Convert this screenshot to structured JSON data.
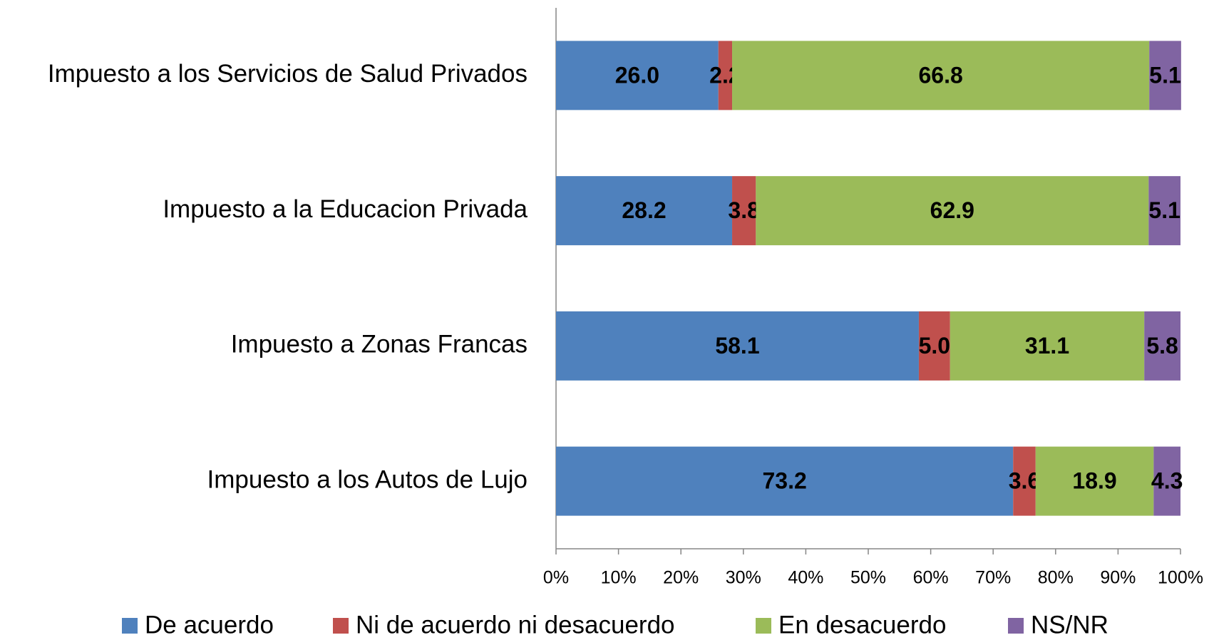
{
  "chart_data": {
    "type": "stacked_bar_horizontal",
    "categories": [
      "Impuesto a los Servicios de Salud Privados",
      "Impuesto a la Educacion Privada",
      "Impuesto a Zonas Francas",
      "Impuesto a los Autos de Lujo"
    ],
    "series": [
      {
        "name": "De acuerdo",
        "color": "#4f81bd",
        "values": [
          26.0,
          28.2,
          58.1,
          73.2
        ],
        "value_labels": [
          "26.0",
          "28.2",
          "58.1",
          "73.2"
        ]
      },
      {
        "name": "Ni de acuerdo ni desacuerdo",
        "color": "#c0504d",
        "values": [
          2.2,
          3.8,
          5.0,
          3.6
        ],
        "value_labels": [
          "2.2",
          "3.8",
          "5.0",
          "3.6"
        ]
      },
      {
        "name": "En desacuerdo",
        "color": "#9bbb59",
        "values": [
          66.8,
          62.9,
          31.1,
          18.9
        ],
        "value_labels": [
          "66.8",
          "62.9",
          "31.1",
          "18.9"
        ]
      },
      {
        "name": "NS/NR",
        "color": "#8064a2",
        "values": [
          5.1,
          5.1,
          5.8,
          4.3
        ],
        "value_labels": [
          "5.1",
          "5.1",
          "5.8",
          "4.3"
        ]
      }
    ],
    "xlim": [
      0,
      100
    ],
    "xticks": [
      {
        "value": 0,
        "label": "0%"
      },
      {
        "value": 10,
        "label": "10%"
      },
      {
        "value": 20,
        "label": "20%"
      },
      {
        "value": 30,
        "label": "30%"
      },
      {
        "value": 40,
        "label": "40%"
      },
      {
        "value": 50,
        "label": "50%"
      },
      {
        "value": 60,
        "label": "60%"
      },
      {
        "value": 70,
        "label": "70%"
      },
      {
        "value": 80,
        "label": "80%"
      },
      {
        "value": 90,
        "label": "90%"
      },
      {
        "value": 100,
        "label": "100%"
      }
    ],
    "legend": "bottom",
    "grid": false
  }
}
